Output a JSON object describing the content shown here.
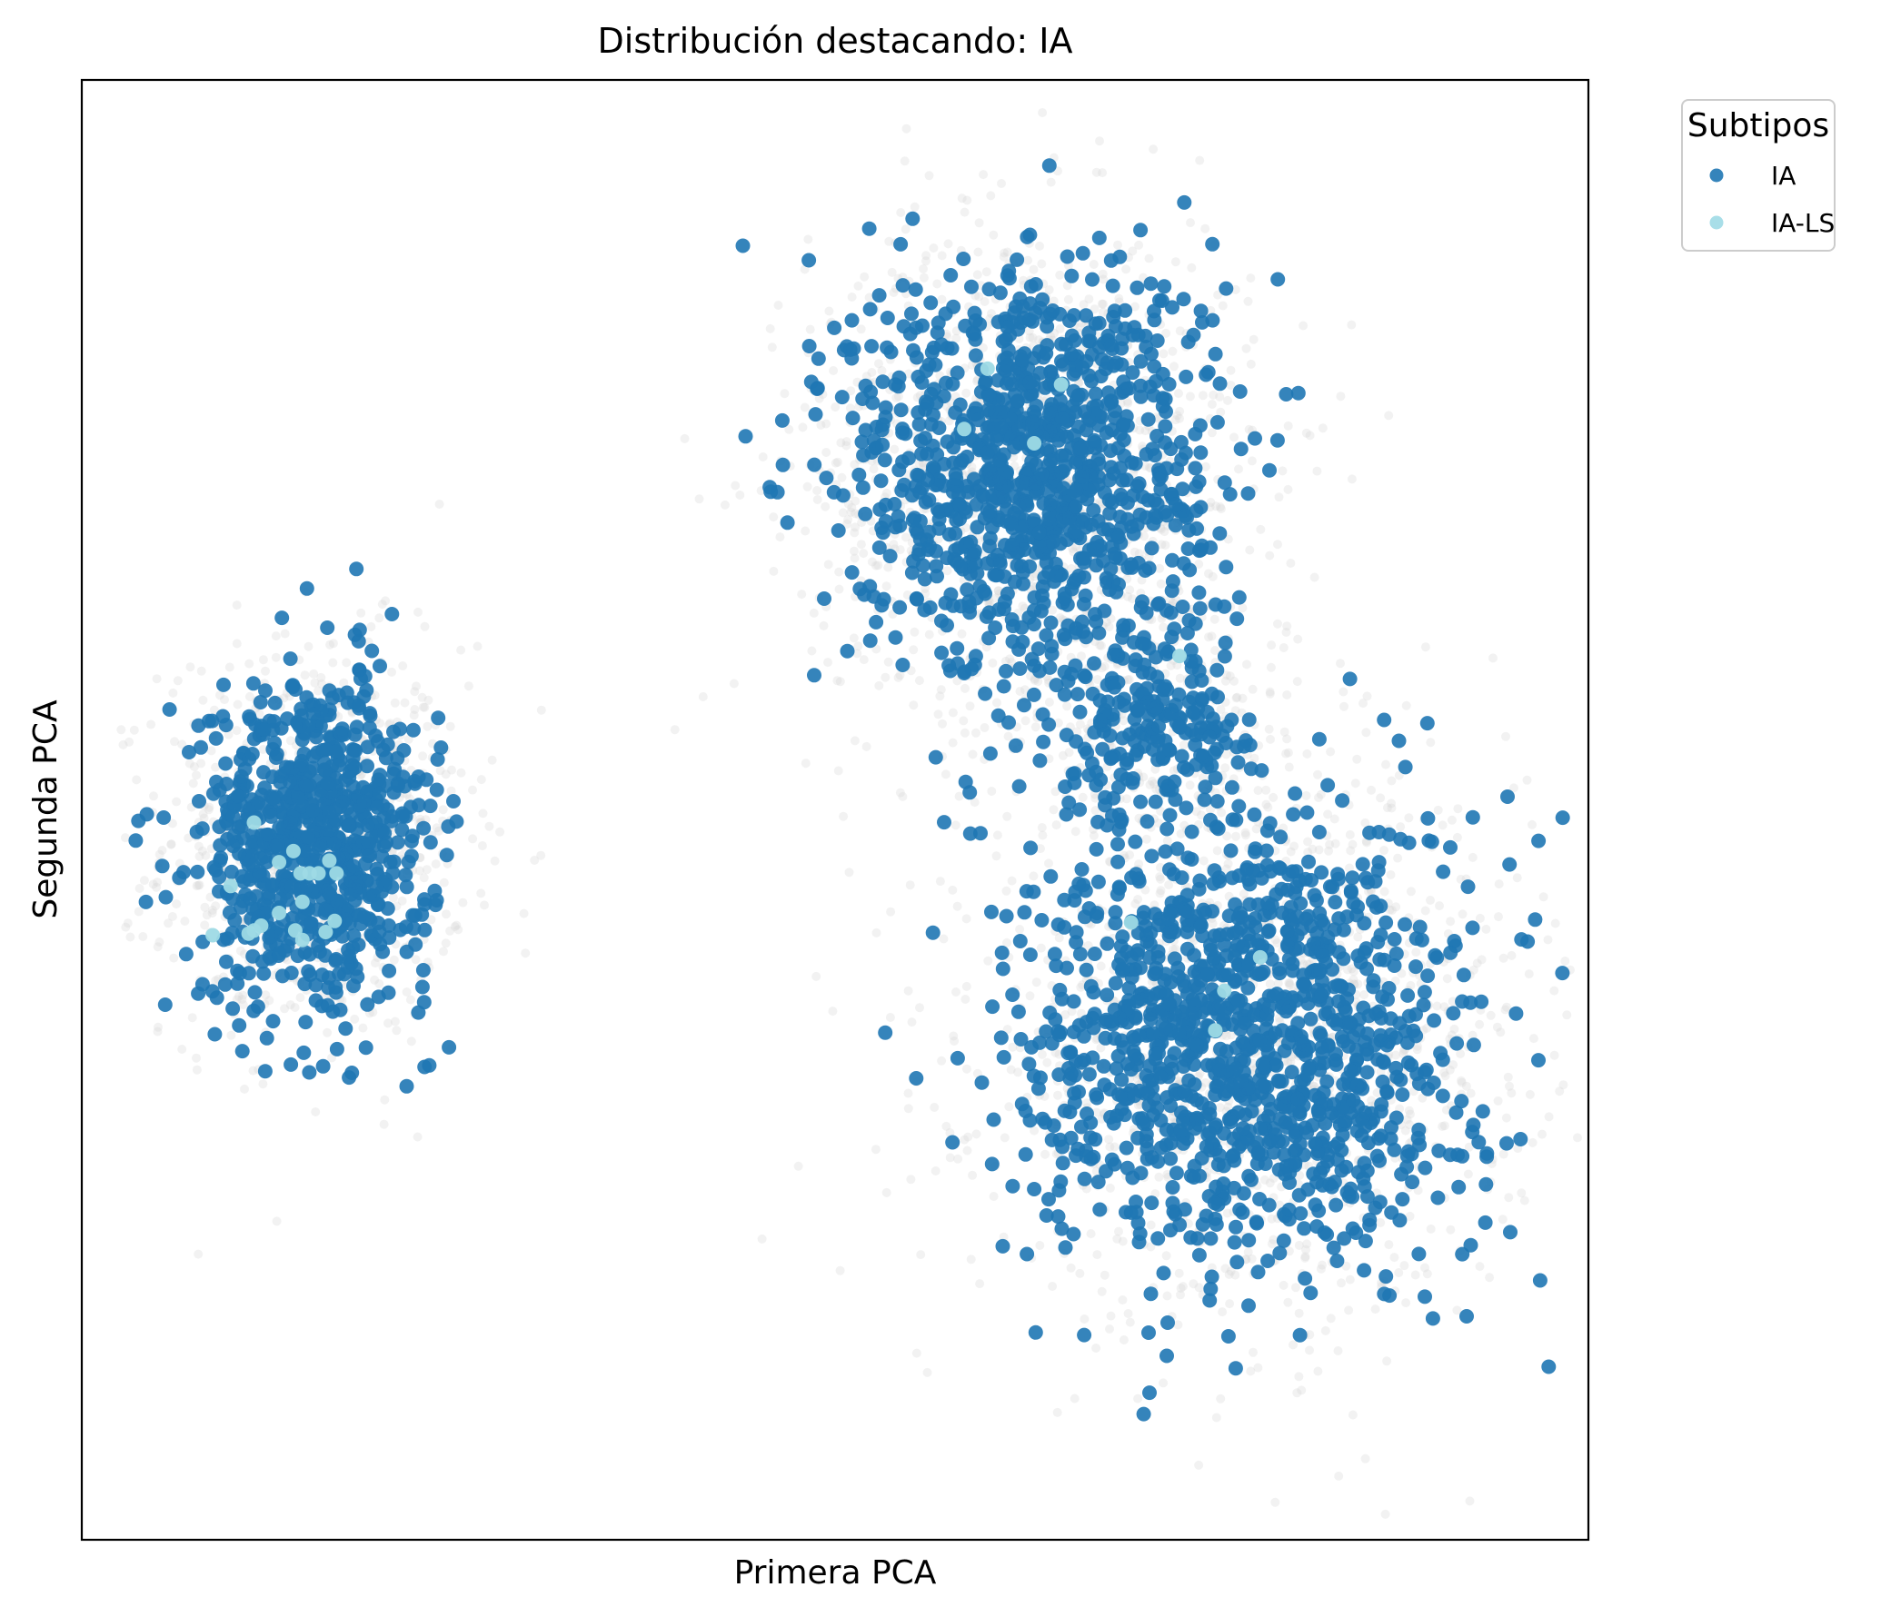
{
  "chart_data": {
    "type": "scatter",
    "title": "Distribución destacando: IA",
    "xlabel": "Primera PCA",
    "ylabel": "Segunda PCA",
    "xticks": "none",
    "yticks": "none",
    "grid": false,
    "xlim": [
      -4.2,
      4.2
    ],
    "ylim": [
      -4.6,
      4.6
    ],
    "legend": {
      "title": "Subtipos",
      "placement": "outside-top-right",
      "entries": [
        "IA",
        "IA-LS"
      ]
    },
    "background_points": {
      "color": "#d3d3d3",
      "opacity": 0.3,
      "description_clusters": [
        {
          "center": [
            -2.9,
            -0.2
          ],
          "spread": [
            0.42,
            0.62
          ],
          "n": 900
        },
        {
          "center": [
            1.1,
            2.15
          ],
          "spread": [
            0.62,
            0.78
          ],
          "n": 1300
        },
        {
          "center": [
            2.3,
            -1.45
          ],
          "spread": [
            0.75,
            0.85
          ],
          "n": 1500
        },
        {
          "center": [
            1.8,
            0.55
          ],
          "spread": [
            0.35,
            0.35
          ],
          "n": 250
        }
      ]
    },
    "series": [
      {
        "name": "IA",
        "color": "#1f77b4",
        "clusters": [
          {
            "center": [
              -2.9,
              -0.2
            ],
            "spread": [
              0.32,
              0.52
            ],
            "n": 800
          },
          {
            "center": [
              1.1,
              2.15
            ],
            "spread": [
              0.5,
              0.65
            ],
            "n": 1100
          },
          {
            "center": [
              2.3,
              -1.45
            ],
            "spread": [
              0.62,
              0.72
            ],
            "n": 1300
          },
          {
            "center": [
              1.8,
              0.55
            ],
            "spread": [
              0.28,
              0.3
            ],
            "n": 200
          }
        ]
      },
      {
        "name": "IA-LS",
        "color": "#9edae5",
        "points": [
          [
            0.85,
            2.78
          ],
          [
            1.26,
            2.68
          ],
          [
            0.72,
            2.4
          ],
          [
            1.11,
            2.31
          ],
          [
            1.92,
            0.97
          ],
          [
            -3.24,
            -0.08
          ],
          [
            -3.02,
            -0.26
          ],
          [
            -3.1,
            -0.33
          ],
          [
            -2.98,
            -0.4
          ],
          [
            -2.93,
            -0.4
          ],
          [
            -2.88,
            -0.4
          ],
          [
            -2.78,
            -0.4
          ],
          [
            -2.82,
            -0.32
          ],
          [
            -3.37,
            -0.48
          ],
          [
            -2.97,
            -0.58
          ],
          [
            -3.1,
            -0.65
          ],
          [
            -3.2,
            -0.73
          ],
          [
            -3.24,
            -0.76
          ],
          [
            -3.27,
            -0.78
          ],
          [
            -3.01,
            -0.76
          ],
          [
            -2.84,
            -0.77
          ],
          [
            -2.79,
            -0.7
          ],
          [
            -3.47,
            -0.79
          ],
          [
            -2.97,
            -0.82
          ],
          [
            1.65,
            -0.71
          ],
          [
            2.37,
            -0.93
          ],
          [
            2.17,
            -1.14
          ],
          [
            2.12,
            -1.39
          ]
        ]
      }
    ]
  }
}
